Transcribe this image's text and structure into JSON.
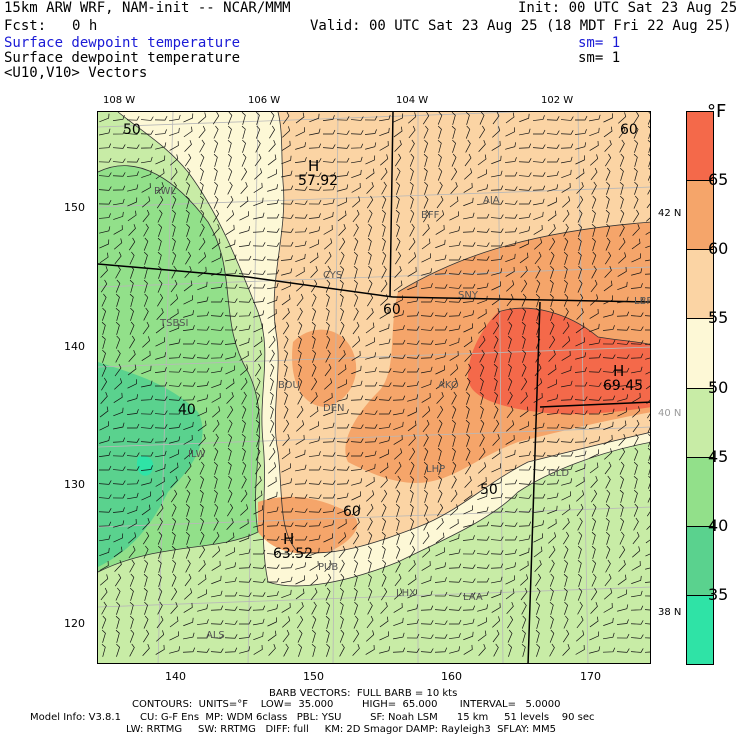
{
  "header": {
    "model_title": "15km ARW WRF, NAM-init -- NCAR/MMM",
    "init_time": "Init: 00 UTC Sat 23 Aug 25",
    "forecast_label": "Fcst:",
    "forecast_hour": "0 h",
    "valid_time": "Valid: 00 UTC Sat 23 Aug 25 (18 MDT Fri 22 Aug 25)",
    "field_1": "Surface dewpoint temperature",
    "field_1_smooth": "sm= 1",
    "field_2": "Surface dewpoint temperature",
    "field_2_smooth": "sm= 1",
    "field_3": "<U10,V10> Vectors"
  },
  "map": {
    "top_longitude_labels": [
      "108 W",
      "106 W",
      "104 W",
      "102 W"
    ],
    "left_grid_labels": [
      "150",
      "140",
      "130",
      "120"
    ],
    "bottom_grid_labels": [
      "140",
      "150",
      "160",
      "170"
    ],
    "right_latitude_labels": [
      "42 N",
      "40 N",
      "38 N"
    ],
    "stations": [
      "RWL",
      "BFF",
      "AIA",
      "CYS",
      "SNY",
      "LBF",
      "TSBSI",
      "BOU",
      "AKO",
      "DEN",
      "ILW",
      "LHP",
      "GLD",
      "PUB",
      "LHX",
      "LAA",
      "ALS"
    ],
    "contour_labels": [
      "50",
      "60",
      "60",
      "40",
      "50",
      "60"
    ],
    "extrema": [
      {
        "symbol": "H",
        "value": "57.92"
      },
      {
        "symbol": "H",
        "value": "69.45"
      },
      {
        "symbol": "H",
        "value": "63.52"
      }
    ]
  },
  "colorbar": {
    "unit": "°F",
    "labels": [
      "65",
      "60",
      "55",
      "50",
      "45",
      "40",
      "35"
    ],
    "colors": [
      "#f4694a",
      "#f5a56a",
      "#fbd4a4",
      "#fdf8d6",
      "#c8eca6",
      "#92e08a",
      "#5ad28e",
      "#2fe3a6"
    ]
  },
  "footer": {
    "barb_line": "BARB VECTORS:  FULL BARB = 10 kts",
    "contour_line": "CONTOURS:  UNITS=°F    LOW=  35.000         HIGH=  65.000       INTERVAL=   5.0000",
    "model_info": "Model Info: V3.8.1      CU: G-F Ens  MP: WDM 6class   PBL: YSU         SF: Noah LSM      15 km     51 levels    90 sec",
    "physics_line": "LW: RRTMG     SW: RRTMG   DIFF: full     KM: 2D Smagor DAMP: Rayleigh3  SFLAY: MM5"
  }
}
